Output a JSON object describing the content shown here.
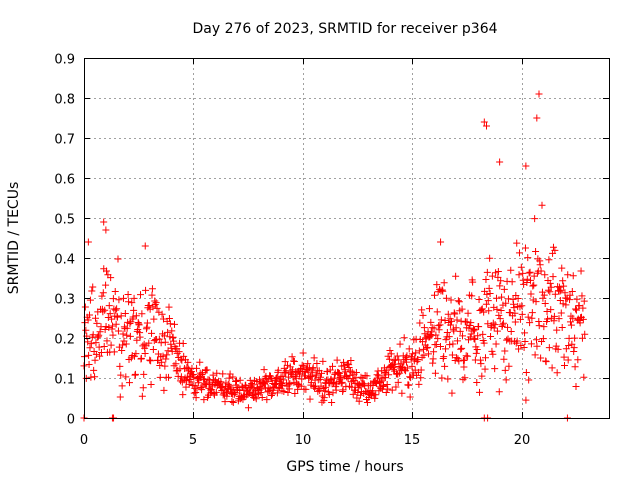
{
  "chart_data": {
    "type": "scatter",
    "title": "Day 276 of 2023, SRMTID for receiver p364",
    "xlabel": "GPS time / hours",
    "ylabel": "SRMTID / TECUs",
    "xlim": [
      0,
      24
    ],
    "ylim": [
      0,
      0.9
    ],
    "x_ticks": [
      0,
      5,
      10,
      15,
      20
    ],
    "x_tick_labels": [
      "0",
      "5",
      "10",
      "15",
      "20"
    ],
    "y_ticks": [
      0,
      0.1,
      0.2,
      0.3,
      0.4,
      0.5,
      0.6,
      0.7,
      0.8,
      0.9
    ],
    "y_tick_labels": [
      "0",
      "0.1",
      "0.2",
      "0.3",
      "0.4",
      "0.5",
      "0.6",
      "0.7",
      "0.8",
      "0.9"
    ],
    "grid": true,
    "marker": "+",
    "color": "#ff0000",
    "trend": {
      "description": "approximate central level of the point cloud over time (TECU)",
      "x": [
        0,
        0.5,
        1,
        2,
        3,
        3.5,
        4,
        4.5,
        5,
        6,
        7,
        8,
        9,
        10,
        11,
        12,
        13,
        13.5,
        14,
        15,
        15.5,
        16,
        17,
        18,
        18.5,
        19,
        20,
        21,
        21.5,
        22,
        22.5,
        23
      ],
      "y": [
        0.2,
        0.22,
        0.25,
        0.2,
        0.22,
        0.2,
        0.18,
        0.12,
        0.09,
        0.085,
        0.065,
        0.075,
        0.09,
        0.11,
        0.085,
        0.11,
        0.07,
        0.08,
        0.12,
        0.14,
        0.18,
        0.22,
        0.21,
        0.2,
        0.26,
        0.24,
        0.26,
        0.28,
        0.3,
        0.27,
        0.22,
        0.25
      ]
    },
    "spread": {
      "description": "approximate vertical scatter half-width of the cloud (TECU)",
      "x": [
        0,
        1,
        3,
        4,
        5,
        7,
        10,
        13,
        15,
        16,
        18,
        19,
        21,
        22,
        23
      ],
      "y": [
        0.09,
        0.12,
        0.1,
        0.08,
        0.035,
        0.025,
        0.04,
        0.03,
        0.05,
        0.09,
        0.1,
        0.14,
        0.17,
        0.11,
        0.09
      ]
    },
    "sample_interval_hours": 0.021,
    "notable_points": [
      {
        "x": 18.3,
        "y": 0.74
      },
      {
        "x": 18.4,
        "y": 0.73
      },
      {
        "x": 20.8,
        "y": 0.81
      },
      {
        "x": 20.7,
        "y": 0.75
      },
      {
        "x": 19.0,
        "y": 0.64
      },
      {
        "x": 20.2,
        "y": 0.63
      },
      {
        "x": 0.9,
        "y": 0.49
      },
      {
        "x": 1.0,
        "y": 0.47
      },
      {
        "x": 2.8,
        "y": 0.43
      },
      {
        "x": 16.3,
        "y": 0.44
      },
      {
        "x": 0.2,
        "y": 0.44
      },
      {
        "x": 0.0,
        "y": 0.0
      },
      {
        "x": 1.3,
        "y": 0.0
      },
      {
        "x": 1.35,
        "y": 0.0
      },
      {
        "x": 18.3,
        "y": 0.0
      },
      {
        "x": 18.45,
        "y": 0.0
      },
      {
        "x": 22.1,
        "y": 0.0
      }
    ]
  }
}
